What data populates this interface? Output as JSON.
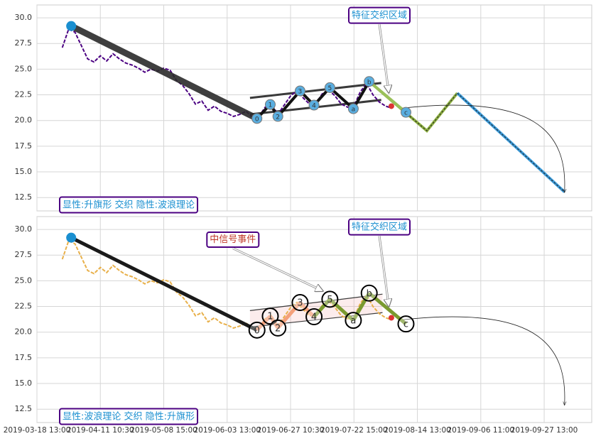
{
  "chart_data": [
    {
      "type": "wave",
      "corner_label": "显性:升旗形 交织 隐性:波浪理论",
      "xlim": [
        0,
        875
      ],
      "ylim": [
        11.2,
        31.25
      ],
      "xticks": [
        0,
        100,
        200,
        300,
        400,
        500,
        600,
        700,
        800
      ],
      "xtick_labels": false,
      "yticks": [
        12.5,
        {
          "value": 15,
          "label": "15.0"
        },
        17.5,
        {
          "value": 20,
          "label": "20.0"
        },
        22.5,
        {
          "value": 25,
          "label": "25.0"
        },
        27.5,
        {
          "value": 30,
          "label": "30.0"
        }
      ],
      "grid": true,
      "price": {
        "color": "#4b0082",
        "x": [
          40,
          50,
          60,
          70,
          80,
          90,
          100,
          110,
          120,
          130,
          140,
          150,
          160,
          170,
          180,
          190,
          200,
          210,
          220,
          230,
          240,
          250,
          260,
          270,
          280,
          290,
          300,
          310,
          320,
          330,
          340,
          350,
          360,
          370,
          380,
          390,
          400,
          410,
          420,
          430,
          440,
          450,
          460,
          470,
          480,
          490,
          500,
          510,
          520,
          530,
          540,
          550,
          560
        ],
        "values": [
          27.1,
          28.9,
          28.6,
          27.3,
          26.0,
          25.7,
          26.3,
          25.8,
          26.5,
          26.0,
          25.6,
          25.4,
          25.1,
          24.7,
          25.0,
          24.8,
          25.1,
          24.9,
          23.9,
          23.4,
          22.6,
          21.6,
          21.9,
          21.0,
          21.4,
          20.9,
          20.7,
          20.4,
          20.6,
          20.9,
          20.3,
          20.4,
          21.3,
          21.6,
          20.6,
          21.5,
          22.4,
          22.9,
          22.2,
          21.6,
          21.7,
          22.6,
          23.0,
          22.4,
          21.6,
          21.3,
          21.4,
          22.8,
          23.6,
          22.5,
          21.8,
          21.4,
          21.2
        ]
      },
      "trend": {
        "color": "#2a2a2a",
        "marker_color": "#1a8fd0",
        "x": [
          54,
          347
        ],
        "values": [
          29.2,
          20.2
        ]
      },
      "channel": {
        "color": "#3a3a3a",
        "x": [
          336,
          543
        ],
        "upper": [
          22.2,
          23.65
        ],
        "lower": [
          20.6,
          22.0
        ]
      },
      "waves": {
        "labels": [
          "0",
          "1",
          "2",
          "3",
          "4",
          "5",
          "a",
          "b",
          "c"
        ],
        "x": [
          347,
          368,
          380,
          415,
          437,
          462,
          499,
          524,
          582
        ],
        "values": [
          20.2,
          21.56,
          20.4,
          22.88,
          21.5,
          23.2,
          21.15,
          23.8,
          20.8
        ],
        "colors": [
          "#111",
          "#111",
          "#111",
          "#111",
          "#111",
          "#111",
          "#111",
          "#111",
          "#9ac05a"
        ],
        "marker_color": "#5aaee0",
        "marker_size": 7
      },
      "projections": [
        {
          "color": "#8db040",
          "x": [
            524,
            615,
            663
          ],
          "values": [
            23.8,
            19.0,
            22.67
          ]
        },
        {
          "color": "#3a9ad9",
          "x": [
            663,
            832
          ],
          "values": [
            22.67,
            13.05
          ]
        }
      ],
      "signal_point": {
        "color": "#d33",
        "x": 559,
        "value": 21.4
      },
      "arc": {
        "x": [
          575,
          832
        ],
        "values": [
          21.2,
          13.0
        ]
      },
      "annotations": [
        {
          "text": "特征交织区域",
          "color": "#1a8fd0",
          "x": 540,
          "y": 30.2,
          "target_x": 555,
          "target_y": 22.7
        }
      ]
    },
    {
      "type": "wave",
      "corner_label": "显性:波浪理论 交织 隐性:升旗形",
      "xlim": [
        0,
        875
      ],
      "ylim": [
        11.2,
        31.25
      ],
      "xticks": [
        {
          "value": 0,
          "label": "2019-03-18 13:00"
        },
        {
          "value": 100,
          "label": "2019-04-11 10:30"
        },
        {
          "value": 200,
          "label": "2019-05-08 15:00"
        },
        {
          "value": 300,
          "label": "2019-06-03 13:00"
        },
        {
          "value": 400,
          "label": "2019-06-27 10:30"
        },
        {
          "value": 500,
          "label": "2019-07-22 15:00"
        },
        {
          "value": 600,
          "label": "2019-08-14 13:00"
        },
        {
          "value": 700,
          "label": "2019-09-06 11:00"
        },
        {
          "value": 800,
          "label": "2019-09-27 13:00"
        }
      ],
      "xtick_labels": true,
      "yticks": [
        12.5,
        {
          "value": 15,
          "label": "15.0"
        },
        17.5,
        {
          "value": 20,
          "label": "20.0"
        },
        22.5,
        {
          "value": 25,
          "label": "25.0"
        },
        27.5,
        {
          "value": 30,
          "label": "30.0"
        }
      ],
      "grid": true,
      "price": {
        "color": "#e8b04a",
        "x": [
          40,
          50,
          60,
          70,
          80,
          90,
          100,
          110,
          120,
          130,
          140,
          150,
          160,
          170,
          180,
          190,
          200,
          210,
          220,
          230,
          240,
          250,
          260,
          270,
          280,
          290,
          300,
          310,
          320,
          330,
          340,
          350,
          360,
          370,
          380,
          390,
          400,
          410,
          420,
          430,
          440,
          450,
          460,
          470,
          480,
          490,
          500,
          510,
          520,
          530,
          540,
          550,
          560
        ],
        "values": [
          27.1,
          28.9,
          28.6,
          27.3,
          26.0,
          25.7,
          26.3,
          25.8,
          26.5,
          26.0,
          25.6,
          25.4,
          25.1,
          24.7,
          25.0,
          24.8,
          25.1,
          24.9,
          23.9,
          23.4,
          22.6,
          21.6,
          21.9,
          21.0,
          21.4,
          20.9,
          20.7,
          20.4,
          20.6,
          20.9,
          20.3,
          20.4,
          21.3,
          21.6,
          20.6,
          21.5,
          22.4,
          22.9,
          22.2,
          21.6,
          21.7,
          22.6,
          23.0,
          22.4,
          21.6,
          21.3,
          21.4,
          22.8,
          23.6,
          22.5,
          21.8,
          21.4,
          21.2
        ]
      },
      "trend": {
        "color": "#1a1a1a",
        "marker_color": "#1a8fd0",
        "x": [
          54,
          347
        ],
        "values": [
          29.2,
          20.2
        ]
      },
      "channel": {
        "color": "#3a3a3a",
        "x": [
          336,
          545
        ],
        "upper": [
          22.1,
          23.7
        ],
        "lower": [
          20.5,
          21.9
        ]
      },
      "waves": {
        "labels": [
          "0",
          "1",
          "2",
          "3",
          "4",
          "5",
          "a",
          "b",
          "c"
        ],
        "x": [
          347,
          368,
          380,
          415,
          437,
          462,
          499,
          524,
          582
        ],
        "values": [
          20.2,
          21.56,
          20.4,
          22.88,
          21.5,
          23.2,
          21.15,
          23.8,
          20.8
        ],
        "colors": [
          "#f4a07a",
          "#f4a07a",
          "#f4a07a",
          "#f4a07a",
          "#f4a07a",
          "#7a9a30",
          "#7a9a30",
          "#7a9a30",
          "#7a9a30"
        ],
        "marker_color": "none",
        "marker_size": 11
      },
      "projections": [],
      "signal_point": {
        "color": "#d33",
        "x": 559,
        "value": 21.4
      },
      "arc": {
        "x": [
          575,
          832
        ],
        "values": [
          21.2,
          12.9
        ]
      },
      "annotations": [
        {
          "text": "中信号事件",
          "color": "#c0392b",
          "x": 309,
          "y": 29.0,
          "target_x": 451,
          "target_y": 24.0
        },
        {
          "text": "特征交织区域",
          "color": "#1a8fd0",
          "x": 540,
          "y": 30.2,
          "target_x": 555,
          "target_y": 22.5
        }
      ]
    }
  ]
}
